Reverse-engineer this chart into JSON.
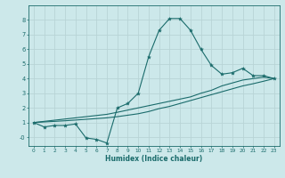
{
  "title": "",
  "xlabel": "Humidex (Indice chaleur)",
  "ylabel": "",
  "bg_color": "#cce8ea",
  "grid_color": "#b8d4d6",
  "line_color": "#1a6b6b",
  "x_data": [
    0,
    1,
    2,
    3,
    4,
    5,
    6,
    7,
    8,
    9,
    10,
    11,
    12,
    13,
    14,
    15,
    16,
    17,
    18,
    19,
    20,
    21,
    22,
    23
  ],
  "y_curve": [
    1.0,
    0.7,
    0.8,
    0.8,
    0.9,
    -0.05,
    -0.15,
    -0.4,
    2.0,
    2.3,
    3.0,
    5.5,
    7.3,
    8.1,
    8.1,
    7.3,
    6.0,
    4.9,
    4.3,
    4.4,
    4.7,
    4.2,
    4.2,
    4.0
  ],
  "y_line1": [
    1.0,
    1.08,
    1.16,
    1.24,
    1.32,
    1.4,
    1.48,
    1.56,
    1.7,
    1.85,
    2.0,
    2.15,
    2.3,
    2.45,
    2.6,
    2.75,
    3.0,
    3.2,
    3.5,
    3.7,
    3.9,
    4.0,
    4.1,
    4.0
  ],
  "y_line2": [
    1.0,
    1.04,
    1.08,
    1.12,
    1.17,
    1.22,
    1.27,
    1.32,
    1.4,
    1.5,
    1.6,
    1.75,
    1.95,
    2.1,
    2.3,
    2.5,
    2.7,
    2.9,
    3.1,
    3.3,
    3.5,
    3.65,
    3.82,
    4.0
  ],
  "ylim": [
    -0.6,
    9.0
  ],
  "xlim": [
    -0.5,
    23.5
  ],
  "yticks": [
    0,
    1,
    2,
    3,
    4,
    5,
    6,
    7,
    8
  ],
  "ytick_labels": [
    "-0",
    "1",
    "2",
    "3",
    "4",
    "5",
    "6",
    "7",
    "8"
  ],
  "xticks": [
    0,
    1,
    2,
    3,
    4,
    5,
    6,
    7,
    8,
    9,
    10,
    11,
    12,
    13,
    14,
    15,
    16,
    17,
    18,
    19,
    20,
    21,
    22,
    23
  ]
}
